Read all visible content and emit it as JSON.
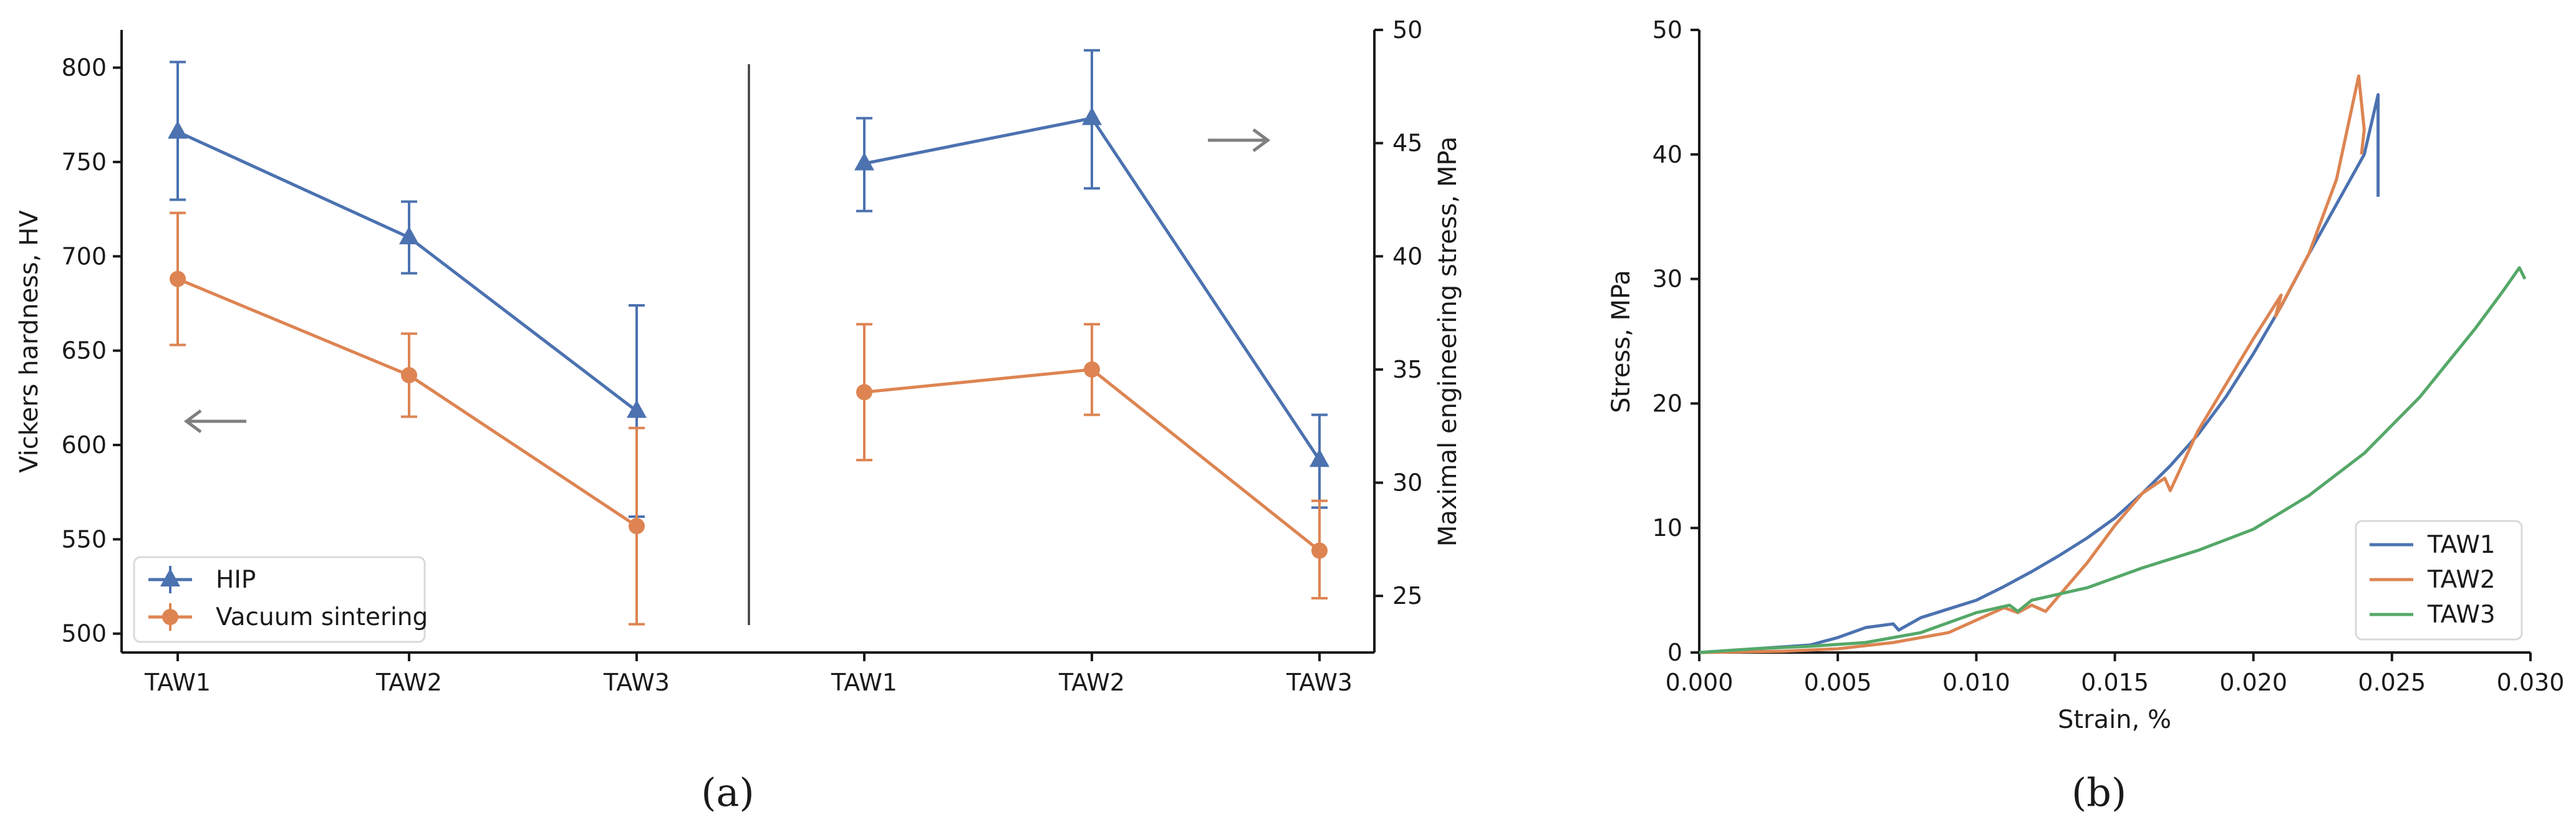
{
  "chart_data": [
    {
      "panel": "a",
      "type": "line",
      "caption": "(a)",
      "left_plot": {
        "categories": [
          "TAW1",
          "TAW2",
          "TAW3"
        ],
        "ylabel": "Vickers hardness, HV",
        "ylim": [
          490,
          820
        ],
        "yticks": [
          500,
          550,
          600,
          650,
          700,
          750,
          800
        ],
        "arrow": "left",
        "series": [
          {
            "name": "HIP",
            "color": "#4c72b0",
            "marker": "triangle",
            "values": [
              766,
              710,
              618
            ],
            "err_low": [
              730,
              691,
              562
            ],
            "err_high": [
              803,
              729,
              674
            ]
          },
          {
            "name": "Vacuum sintering",
            "color": "#dd8452",
            "marker": "circle",
            "values": [
              688,
              637,
              557
            ],
            "err_low": [
              653,
              615,
              505
            ],
            "err_high": [
              723,
              659,
              609
            ]
          }
        ]
      },
      "right_plot": {
        "categories": [
          "TAW1",
          "TAW2",
          "TAW3"
        ],
        "ylabel": "Maximal engineering stress, MPa",
        "ylim": [
          22.5,
          50
        ],
        "yticks": [
          25,
          30,
          35,
          40,
          45,
          50
        ],
        "arrow": "right",
        "series": [
          {
            "name": "HIP",
            "color": "#4c72b0",
            "marker": "triangle",
            "values": [
              44.1,
              46.1,
              31.0
            ],
            "err_low": [
              42.0,
              43.0,
              28.9
            ],
            "err_high": [
              46.1,
              49.1,
              33.0
            ]
          },
          {
            "name": "Vacuum sintering",
            "color": "#dd8452",
            "marker": "circle",
            "values": [
              34.0,
              35.0,
              27.0
            ],
            "err_low": [
              31.0,
              33.0,
              24.9
            ],
            "err_high": [
              37.0,
              37.0,
              29.2
            ]
          }
        ]
      },
      "legend": {
        "position": "lower-left",
        "entries": [
          "HIP",
          "Vacuum sintering"
        ]
      }
    },
    {
      "panel": "b",
      "type": "line",
      "caption": "(b)",
      "xlabel": "Strain, %",
      "ylabel": "Stress, MPa",
      "xlim": [
        0,
        0.03
      ],
      "ylim": [
        0,
        50
      ],
      "xticks": [
        "0.000",
        "0.005",
        "0.010",
        "0.015",
        "0.020",
        "0.025",
        "0.030"
      ],
      "yticks": [
        0,
        10,
        20,
        30,
        40,
        50
      ],
      "legend": {
        "position": "lower-right"
      },
      "series": [
        {
          "name": "TAW1",
          "color": "#4c72b0",
          "x": [
            0,
            0.002,
            0.004,
            0.005,
            0.006,
            0.007,
            0.0072,
            0.008,
            0.009,
            0.01,
            0.011,
            0.012,
            0.013,
            0.014,
            0.015,
            0.016,
            0.017,
            0.018,
            0.019,
            0.02,
            0.021,
            0.022,
            0.023,
            0.024,
            0.0245,
            0.0245
          ],
          "y": [
            0,
            0.3,
            0.6,
            1.2,
            2.0,
            2.3,
            1.8,
            2.8,
            3.5,
            4.2,
            5.3,
            6.5,
            7.8,
            9.2,
            10.8,
            12.8,
            15.0,
            17.5,
            20.5,
            24.0,
            27.8,
            32.0,
            36.0,
            40.0,
            44.8,
            36.6
          ]
        },
        {
          "name": "TAW2",
          "color": "#dd8452",
          "x": [
            0,
            0.003,
            0.005,
            0.007,
            0.009,
            0.01,
            0.011,
            0.0115,
            0.012,
            0.0125,
            0.013,
            0.014,
            0.015,
            0.016,
            0.0168,
            0.017,
            0.018,
            0.019,
            0.02,
            0.021,
            0.0208,
            0.022,
            0.023,
            0.0238,
            0.024,
            0.0239
          ],
          "y": [
            0,
            0.1,
            0.3,
            0.8,
            1.6,
            2.6,
            3.6,
            3.2,
            3.8,
            3.3,
            4.6,
            7.2,
            10.2,
            12.8,
            14.0,
            13.0,
            17.8,
            21.5,
            25.2,
            28.7,
            27.0,
            32.0,
            38.0,
            46.3,
            42.0,
            40.0
          ]
        },
        {
          "name": "TAW3",
          "color": "#55a868",
          "x": [
            0,
            0.002,
            0.004,
            0.006,
            0.008,
            0.01,
            0.0112,
            0.0115,
            0.012,
            0.014,
            0.016,
            0.018,
            0.02,
            0.022,
            0.024,
            0.026,
            0.028,
            0.029,
            0.0296,
            0.0298
          ],
          "y": [
            0,
            0.3,
            0.5,
            0.8,
            1.6,
            3.2,
            3.8,
            3.3,
            4.2,
            5.2,
            6.8,
            8.2,
            9.9,
            12.6,
            16.0,
            20.5,
            26.0,
            29.0,
            30.9,
            30.0
          ]
        }
      ]
    }
  ]
}
